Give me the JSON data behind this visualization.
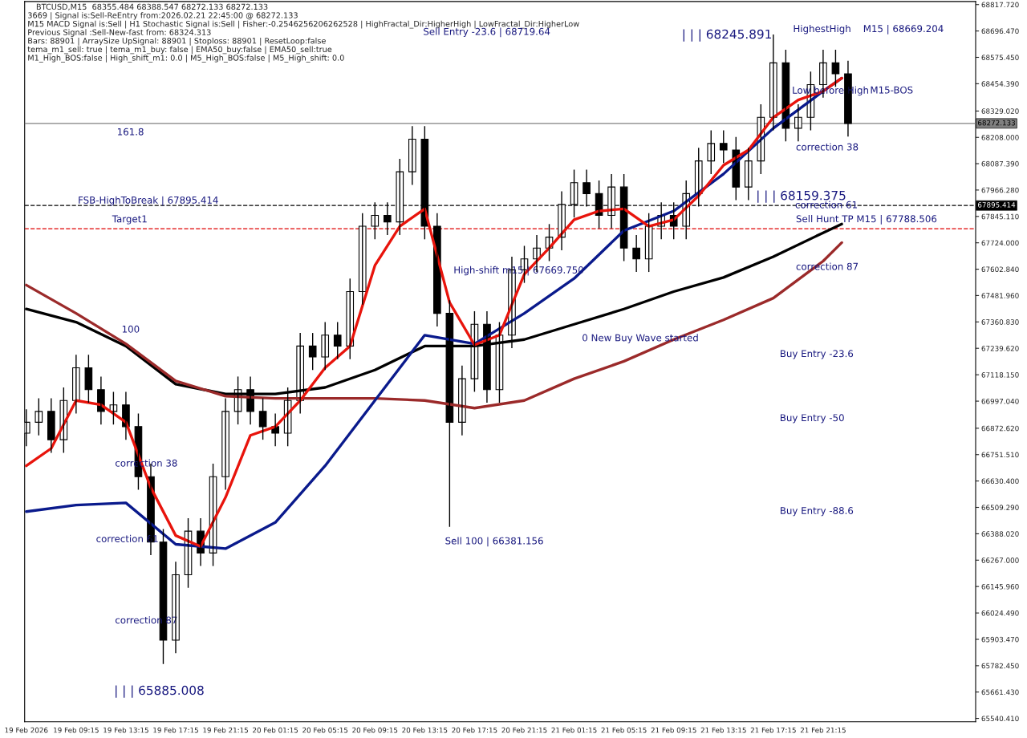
{
  "chart_data": {
    "type": "candlestick",
    "title": "BTCUSD,M15  68355.484 68388.547 68272.133 68272.133",
    "annotations": [
      "3669 | Signal is:Sell-ReEntry from:2026.02.21 22:45:00 @ 68272.133",
      "M15 MACD Signal is:Sell | H1 Stochastic Signal is:Sell | Fisher:-0.2546256206262528 | HighFractal_Dir:HigherHigh | LowFractal_Dir:HigherLow",
      "Previous Signal :Sell-New-fast from: 68324.313",
      "Bars: 88901 | ArraySize UpSignal: 88901 | Stoploss: 88901 | ResetLoop:false",
      "tema_m1_sell: true | tema_m1_buy: false | EMA50_buy:false | EMA50_sell:true",
      "M1_High_BOS:false | High_shift_m1: 0.0 | M5_High_BOS:false | M5_High_shift: 0.0",
      "Sell Entry -23.6 | 68719.64",
      "| | | 68245.891",
      "HighestHigh    M15 | 68669.204",
      "M15-BOS",
      "correction 38",
      "| | | 68159.375",
      "Sell Hunt TP M15 | 67788.506",
      "Buy Entry -23.6",
      "Buy Entry -50",
      "Buy Entry -88.6",
      "0 New Buy Wave started",
      "High-shift m15 | 67669.750",
      "Sell 100 | 66381.156",
      "| | | 65885.008",
      "correction 61",
      "correction 87",
      "161.8",
      "100",
      "Target1",
      "FSB-HighToBreak | 67895.414",
      "correction 87",
      "correction 38",
      {
        "text": "Low before High",
        "x": "2026-02-21T18:45",
        "y": 68421
      },
      {
        "text": "correction 61",
        "x": "2026-02-21T19:00",
        "y": 67895
      }
    ],
    "x": [
      "2026-02-19T05:15",
      "2026-02-19T06:15",
      "2026-02-19T07:15",
      "2026-02-19T08:15",
      "2026-02-19T09:15",
      "2026-02-19T10:15",
      "2026-02-19T11:15",
      "2026-02-19T12:15",
      "2026-02-19T13:15",
      "2026-02-19T14:15",
      "2026-02-19T15:15",
      "2026-02-19T16:15",
      "2026-02-19T17:15",
      "2026-02-19T18:15",
      "2026-02-19T19:15",
      "2026-02-19T20:15",
      "2026-02-19T21:15",
      "2026-02-19T22:15",
      "2026-02-19T23:15",
      "2026-02-20T00:15",
      "2026-02-20T01:15",
      "2026-02-20T02:15",
      "2026-02-20T03:15",
      "2026-02-20T04:15",
      "2026-02-20T05:15",
      "2026-02-20T06:15",
      "2026-02-20T07:15",
      "2026-02-20T08:15",
      "2026-02-20T09:15",
      "2026-02-20T10:15",
      "2026-02-20T11:15",
      "2026-02-20T12:15",
      "2026-02-20T13:15",
      "2026-02-20T14:15",
      "2026-02-20T15:15",
      "2026-02-20T16:15",
      "2026-02-20T17:15",
      "2026-02-20T18:15",
      "2026-02-20T19:15",
      "2026-02-20T20:15",
      "2026-02-20T21:15",
      "2026-02-20T22:15",
      "2026-02-20T23:15",
      "2026-02-21T00:15",
      "2026-02-21T01:15",
      "2026-02-21T02:15",
      "2026-02-21T03:15",
      "2026-02-21T04:15",
      "2026-02-21T05:15",
      "2026-02-21T06:15",
      "2026-02-21T07:15",
      "2026-02-21T08:15",
      "2026-02-21T09:15",
      "2026-02-21T10:15",
      "2026-02-21T11:15",
      "2026-02-21T12:15",
      "2026-02-21T13:15",
      "2026-02-21T14:15",
      "2026-02-21T15:15",
      "2026-02-21T16:15",
      "2026-02-21T17:15",
      "2026-02-21T18:15",
      "2026-02-21T19:15",
      "2026-02-21T20:15",
      "2026-02-21T21:15",
      "2026-02-21T22:15",
      "2026-02-21T23:15"
    ],
    "ohlc": [
      [
        66850,
        66960,
        66790,
        66900
      ],
      [
        66900,
        67010,
        66840,
        66950
      ],
      [
        66950,
        67010,
        66760,
        66820
      ],
      [
        66820,
        67060,
        66760,
        67000
      ],
      [
        67000,
        67210,
        66940,
        67150
      ],
      [
        67150,
        67210,
        66990,
        67050
      ],
      [
        67050,
        67110,
        66890,
        66950
      ],
      [
        66950,
        67040,
        66890,
        66980
      ],
      [
        66980,
        67040,
        66820,
        66880
      ],
      [
        66880,
        66940,
        66590,
        66650
      ],
      [
        66650,
        66710,
        66290,
        66350
      ],
      [
        66350,
        66410,
        65790,
        65900
      ],
      [
        65900,
        66260,
        65840,
        66200
      ],
      [
        66200,
        66460,
        66140,
        66400
      ],
      [
        66400,
        66460,
        66240,
        66300
      ],
      [
        66300,
        66710,
        66240,
        66650
      ],
      [
        66650,
        67010,
        66590,
        66950
      ],
      [
        66950,
        67110,
        66890,
        67050
      ],
      [
        67050,
        67110,
        66890,
        66950
      ],
      [
        66950,
        67010,
        66820,
        66880
      ],
      [
        66880,
        66940,
        66790,
        66850
      ],
      [
        66850,
        67060,
        66790,
        67000
      ],
      [
        67000,
        67310,
        66940,
        67250
      ],
      [
        67250,
        67310,
        67140,
        67200
      ],
      [
        67200,
        67360,
        67140,
        67300
      ],
      [
        67300,
        67360,
        67190,
        67250
      ],
      [
        67250,
        67560,
        67190,
        67500
      ],
      [
        67500,
        67860,
        67440,
        67800
      ],
      [
        67800,
        67910,
        67740,
        67850
      ],
      [
        67850,
        67910,
        67760,
        67820
      ],
      [
        67820,
        68110,
        67760,
        68050
      ],
      [
        68050,
        68260,
        67990,
        68200
      ],
      [
        68200,
        68260,
        67740,
        67800
      ],
      [
        67800,
        67860,
        67340,
        67400
      ],
      [
        67400,
        67460,
        66420,
        66900
      ],
      [
        66900,
        67160,
        66840,
        67100
      ],
      [
        67100,
        67410,
        67040,
        67350
      ],
      [
        67350,
        67410,
        66990,
        67050
      ],
      [
        67050,
        67360,
        66990,
        67300
      ],
      [
        67300,
        67660,
        67240,
        67600
      ],
      [
        67600,
        67710,
        67540,
        67650
      ],
      [
        67650,
        67760,
        67590,
        67700
      ],
      [
        67700,
        67810,
        67640,
        67750
      ],
      [
        67750,
        67960,
        67690,
        67900
      ],
      [
        67900,
        68060,
        67840,
        68000
      ],
      [
        68000,
        68060,
        67890,
        67950
      ],
      [
        67950,
        68010,
        67790,
        67850
      ],
      [
        67850,
        68040,
        67790,
        67980
      ],
      [
        67980,
        68040,
        67640,
        67700
      ],
      [
        67700,
        67760,
        67590,
        67650
      ],
      [
        67650,
        67860,
        67590,
        67800
      ],
      [
        67800,
        67910,
        67740,
        67850
      ],
      [
        67850,
        67910,
        67740,
        67800
      ],
      [
        67800,
        68010,
        67740,
        67950
      ],
      [
        67950,
        68160,
        67890,
        68100
      ],
      [
        68100,
        68240,
        68040,
        68180
      ],
      [
        68180,
        68240,
        68090,
        68150
      ],
      [
        68150,
        68210,
        67920,
        67980
      ],
      [
        67980,
        68160,
        67920,
        68100
      ],
      [
        68100,
        68360,
        68040,
        68300
      ],
      [
        68300,
        68680,
        68240,
        68550
      ],
      [
        68550,
        68610,
        68190,
        68250
      ],
      [
        68250,
        68360,
        68190,
        68300
      ],
      [
        68300,
        68510,
        68240,
        68450
      ],
      [
        68450,
        68610,
        68390,
        68550
      ],
      [
        68550,
        68610,
        68440,
        68500
      ],
      [
        68500,
        68560,
        68212,
        68272
      ]
    ],
    "color": "#000000",
    "series": [
      {
        "type": "line",
        "color": "#000000",
        "x": [
          "2026-02-19T05:15",
          "2026-02-19T09:15",
          "2026-02-19T13:15",
          "2026-02-19T17:15",
          "2026-02-19T21:15",
          "2026-02-20T01:15",
          "2026-02-20T05:15",
          "2026-02-20T09:15",
          "2026-02-20T13:15",
          "2026-02-20T17:15",
          "2026-02-20T21:15",
          "2026-02-21T01:15",
          "2026-02-21T05:15",
          "2026-02-21T09:15",
          "2026-02-21T13:15",
          "2026-02-21T17:15",
          "2026-02-21T21:15",
          "2026-02-21T22:45"
        ],
        "values": [
          67420,
          67360,
          67250,
          67075,
          67030,
          67030,
          67060,
          67140,
          67250,
          67250,
          67280,
          67350,
          67420,
          67500,
          67565,
          67660,
          67770,
          67810
        ]
      },
      {
        "type": "line",
        "color": "#9b2a2a",
        "x": [
          "2026-02-19T05:15",
          "2026-02-19T09:15",
          "2026-02-19T13:15",
          "2026-02-19T17:15",
          "2026-02-19T21:15",
          "2026-02-20T01:15",
          "2026-02-20T05:15",
          "2026-02-20T09:15",
          "2026-02-20T13:15",
          "2026-02-20T17:15",
          "2026-02-20T21:15",
          "2026-02-21T01:15",
          "2026-02-21T05:15",
          "2026-02-21T09:15",
          "2026-02-21T13:15",
          "2026-02-21T17:15",
          "2026-02-21T21:15",
          "2026-02-21T22:45"
        ],
        "values": [
          67530,
          67400,
          67260,
          67090,
          67020,
          67010,
          67010,
          67010,
          67000,
          66965,
          67000,
          67100,
          67180,
          67280,
          67370,
          67470,
          67640,
          67725
        ]
      },
      {
        "type": "line",
        "color": "#0a1a8c",
        "x": [
          "2026-02-19T05:15",
          "2026-02-19T09:15",
          "2026-02-19T13:15",
          "2026-02-19T17:15",
          "2026-02-19T21:15",
          "2026-02-20T01:15",
          "2026-02-20T05:15",
          "2026-02-20T09:15",
          "2026-02-20T13:15",
          "2026-02-20T17:15",
          "2026-02-20T21:15",
          "2026-02-21T01:15",
          "2026-02-21T05:15",
          "2026-02-21T09:15",
          "2026-02-21T13:15",
          "2026-02-21T17:15",
          "2026-02-21T21:15",
          "2026-02-21T22:45"
        ],
        "values": [
          66490,
          66520,
          66530,
          66340,
          66320,
          66440,
          66700,
          67000,
          67300,
          67260,
          67400,
          67560,
          67780,
          67870,
          68040,
          68250,
          68420,
          68480
        ]
      },
      {
        "type": "line",
        "color": "#e8140c",
        "x": [
          "2026-02-19T05:15",
          "2026-02-19T07:15",
          "2026-02-19T09:15",
          "2026-02-19T11:15",
          "2026-02-19T13:15",
          "2026-02-19T15:15",
          "2026-02-19T17:15",
          "2026-02-19T19:15",
          "2026-02-19T21:15",
          "2026-02-19T23:15",
          "2026-02-20T01:15",
          "2026-02-20T03:15",
          "2026-02-20T05:15",
          "2026-02-20T07:15",
          "2026-02-20T09:15",
          "2026-02-20T11:15",
          "2026-02-20T13:15",
          "2026-02-20T15:15",
          "2026-02-20T17:15",
          "2026-02-20T19:15",
          "2026-02-20T21:15",
          "2026-02-20T23:15",
          "2026-02-21T01:15",
          "2026-02-21T03:15",
          "2026-02-21T05:15",
          "2026-02-21T07:15",
          "2026-02-21T09:15",
          "2026-02-21T11:15",
          "2026-02-21T13:15",
          "2026-02-21T15:15",
          "2026-02-21T17:15",
          "2026-02-21T19:15",
          "2026-02-21T21:15",
          "2026-02-21T22:45"
        ],
        "values": [
          66700,
          66780,
          67000,
          66980,
          66900,
          66600,
          66380,
          66330,
          66555,
          66840,
          66880,
          67000,
          67150,
          67250,
          67620,
          67800,
          67880,
          67450,
          67255,
          67300,
          67580,
          67700,
          67830,
          67870,
          67880,
          67800,
          67830,
          67940,
          68080,
          68150,
          68300,
          68380,
          68420,
          68480
        ]
      }
    ],
    "ref_lines": [
      {
        "axis": "y",
        "value": 67895.414,
        "label": "67895.414",
        "color": "#000000",
        "line_style": "dashed"
      },
      {
        "axis": "y",
        "value": 68272.133,
        "label": "68272.133",
        "color": "#808080",
        "line_style": "solid"
      },
      {
        "axis": "y",
        "value": 67788.506,
        "color": "#e00000",
        "line_style": "dashed"
      }
    ],
    "xlim": [
      "2026-02-19T05:07",
      "2026-02-22T09:30"
    ],
    "xticks": [
      {
        "value": "2026-02-19T05:15",
        "label": "19 Feb 2026"
      },
      {
        "value": "2026-02-19T09:15",
        "label": "19 Feb 09:15"
      },
      {
        "value": "2026-02-19T13:15",
        "label": "19 Feb 13:15"
      },
      {
        "value": "2026-02-19T17:15",
        "label": "19 Feb 17:15"
      },
      {
        "value": "2026-02-19T21:15",
        "label": "19 Feb 21:15"
      },
      {
        "value": "2026-02-20T01:15",
        "label": "20 Feb 01:15"
      },
      {
        "value": "2026-02-20T05:15",
        "label": "20 Feb 05:15"
      },
      {
        "value": "2026-02-20T09:15",
        "label": "20 Feb 09:15"
      },
      {
        "value": "2026-02-20T13:15",
        "label": "20 Feb 13:15"
      },
      {
        "value": "2026-02-20T17:15",
        "label": "20 Feb 17:15"
      },
      {
        "value": "2026-02-20T21:15",
        "label": "20 Feb 21:15"
      },
      {
        "value": "2026-02-21T01:15",
        "label": "21 Feb 01:15"
      },
      {
        "value": "2026-02-21T05:15",
        "label": "21 Feb 05:15"
      },
      {
        "value": "2026-02-21T09:15",
        "label": "21 Feb 09:15"
      },
      {
        "value": "2026-02-21T13:15",
        "label": "21 Feb 13:15"
      },
      {
        "value": "2026-02-21T17:15",
        "label": "21 Feb 17:15"
      },
      {
        "value": "2026-02-21T21:15",
        "label": "21 Feb 21:15"
      }
    ],
    "ylim": [
      65525,
      68832
    ],
    "yticks": [
      {
        "value": 65540.41,
        "label": "65540.410"
      },
      {
        "value": 65661.43,
        "label": "65661.430"
      },
      {
        "value": 65782.45,
        "label": "65782.450"
      },
      {
        "value": 65903.47,
        "label": "65903.470"
      },
      {
        "value": 66024.49,
        "label": "66024.490"
      },
      {
        "value": 66145.96,
        "label": "66145.960"
      },
      {
        "value": 66267.0,
        "label": "66267.000"
      },
      {
        "value": 66388.02,
        "label": "66388.020"
      },
      {
        "value": 66509.29,
        "label": "66509.290"
      },
      {
        "value": 66630.4,
        "label": "66630.400"
      },
      {
        "value": 66751.51,
        "label": "66751.510"
      },
      {
        "value": 66872.62,
        "label": "66872.620"
      },
      {
        "value": 66997.04,
        "label": "66997.040"
      },
      {
        "value": 67118.15,
        "label": "67118.150"
      },
      {
        "value": 67239.62,
        "label": "67239.620"
      },
      {
        "value": 67360.83,
        "label": "67360.830"
      },
      {
        "value": 67481.96,
        "label": "67481.960"
      },
      {
        "value": 67602.84,
        "label": "67602.840"
      },
      {
        "value": 67724.0,
        "label": "67724.000"
      },
      {
        "value": 67845.11,
        "label": "67845.110"
      },
      {
        "value": 67966.28,
        "label": "67966.280"
      },
      {
        "value": 68087.39,
        "label": "68087.390"
      },
      {
        "value": 68208.0,
        "label": "68208.000"
      },
      {
        "value": 68329.02,
        "label": "68329.020"
      },
      {
        "value": 68454.39,
        "label": "68454.390"
      },
      {
        "value": 68575.45,
        "label": "68575.450"
      },
      {
        "value": 68696.47,
        "label": "68696.470"
      },
      {
        "value": 68817.72,
        "label": "68817.720"
      }
    ]
  }
}
